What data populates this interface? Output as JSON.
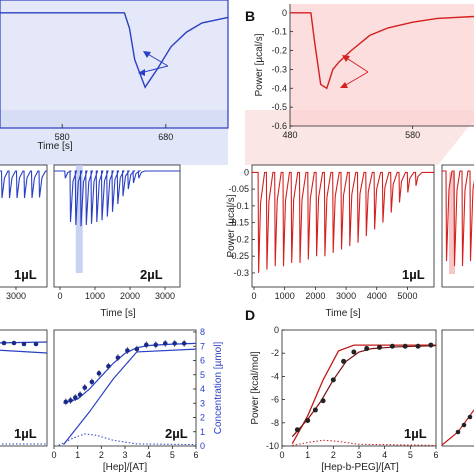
{
  "chart_data": [
    {
      "id": "A-zoom",
      "type": "line",
      "panel_label": "",
      "xlabel": "Time [s]",
      "xticks": [
        580,
        680
      ],
      "xlim": [
        520,
        740
      ],
      "ylim": [
        -0.6,
        0.02
      ],
      "color": "#2a3fc4",
      "series": [
        {
          "x": [
            520,
            640,
            645,
            650,
            660,
            672,
            685,
            700,
            715,
            740
          ],
          "y": [
            0.005,
            0.005,
            -0.08,
            -0.25,
            -0.4,
            -0.3,
            -0.18,
            -0.1,
            -0.05,
            -0.02
          ]
        }
      ]
    },
    {
      "id": "B-zoom",
      "type": "line",
      "panel_label": "B",
      "ylabel": "Power [µcal/s]",
      "xticks": [
        480,
        580
      ],
      "yticks": [
        0,
        -0.1,
        -0.2,
        -0.3,
        -0.4,
        -0.5,
        -0.6
      ],
      "xlim": [
        480,
        630
      ],
      "ylim": [
        -0.6,
        0.02
      ],
      "color": "#d42020",
      "series": [
        {
          "x": [
            480,
            497,
            500,
            505,
            510,
            515,
            520,
            530,
            545,
            560,
            580,
            600,
            630
          ],
          "y": [
            0,
            0,
            -0.15,
            -0.38,
            -0.4,
            -0.3,
            -0.26,
            -0.2,
            -0.12,
            -0.08,
            -0.05,
            -0.03,
            -0.02
          ]
        }
      ]
    },
    {
      "id": "A-1uL",
      "type": "line",
      "annotation": "1µL",
      "xticks": [
        3000
      ],
      "color": "#2a3fc4",
      "peaks": [
        -0.9,
        -0.9,
        -0.9,
        -0.9,
        -0.9,
        -0.88,
        -0.85,
        -0.8,
        -0.7,
        -0.6,
        -0.45,
        -0.3,
        -0.2,
        -0.1
      ]
    },
    {
      "id": "A-2uL",
      "type": "line",
      "annotation": "2µL",
      "xlabel": "Time [s]",
      "xticks": [
        0,
        1000,
        2000,
        3000
      ],
      "xlim": [
        0,
        3200
      ],
      "color": "#2a3fc4",
      "peaks_t": [
        150,
        300,
        450,
        600,
        750,
        900,
        1050,
        1200,
        1350,
        1500,
        1650,
        1800,
        1950,
        2100,
        2250
      ],
      "peaks": [
        -0.12,
        -0.85,
        -0.9,
        -0.92,
        -0.9,
        -0.88,
        -0.85,
        -0.82,
        -0.76,
        -0.68,
        -0.55,
        -0.42,
        -0.3,
        -0.2,
        -0.12
      ]
    },
    {
      "id": "B-1uL",
      "type": "line",
      "annotation": "1µL",
      "ylabel": "Power [µcal/s]",
      "xlabel": "Time [s]",
      "xticks": [
        0,
        1000,
        2000,
        3000,
        4000,
        5000
      ],
      "xlim": [
        0,
        5800
      ],
      "yticks": [
        0,
        -0.05,
        -0.1,
        -0.15,
        -0.2,
        -0.25,
        -0.3
      ],
      "ylim": [
        -0.33,
        0.01
      ],
      "color": "#d42020",
      "peaks": [
        -0.3,
        -0.29,
        -0.28,
        -0.28,
        -0.27,
        -0.27,
        -0.26,
        -0.25,
        -0.25,
        -0.24,
        -0.23,
        -0.22,
        -0.21,
        -0.19,
        -0.17,
        -0.15,
        -0.12,
        -0.09,
        -0.06,
        -0.04
      ]
    },
    {
      "id": "A-binding",
      "type": "scatter",
      "annotation": "2µL",
      "xlabel": "[Hep]/[AT]",
      "xticks": [
        0,
        1,
        2,
        3,
        4,
        5,
        6
      ],
      "xlim": [
        0,
        6
      ],
      "ylabel_right": "Concentration [µmol]",
      "yticks_right": [
        0,
        1,
        2,
        3,
        4,
        5,
        6,
        7,
        8
      ],
      "ylim": [
        0,
        8
      ],
      "color": "#2a3fc4",
      "points": [
        [
          0.5,
          3.1
        ],
        [
          0.7,
          3.2
        ],
        [
          0.9,
          3.4
        ],
        [
          1.1,
          3.6
        ],
        [
          1.3,
          4.1
        ],
        [
          1.6,
          4.5
        ],
        [
          1.9,
          5.1
        ],
        [
          2.3,
          5.6
        ],
        [
          2.7,
          6.2
        ],
        [
          3.1,
          6.7
        ],
        [
          3.5,
          6.8
        ],
        [
          3.9,
          7.1
        ],
        [
          4.3,
          7.1
        ],
        [
          4.7,
          7.2
        ],
        [
          5.1,
          7.2
        ],
        [
          5.5,
          7.2
        ]
      ],
      "fit": [
        [
          0.4,
          3.0
        ],
        [
          1,
          3.3
        ],
        [
          1.5,
          4.0
        ],
        [
          2,
          4.9
        ],
        [
          2.5,
          5.8
        ],
        [
          3,
          6.5
        ],
        [
          3.5,
          6.9
        ],
        [
          4,
          7.05
        ],
        [
          5,
          7.15
        ],
        [
          6,
          7.2
        ]
      ],
      "linear": [
        [
          0.4,
          0.1
        ],
        [
          1.5,
          2.4
        ],
        [
          2.5,
          4.7
        ],
        [
          3.5,
          6.6
        ],
        [
          6,
          6.8
        ]
      ],
      "dotted": [
        [
          0.2,
          0.05
        ],
        [
          0.8,
          0.55
        ],
        [
          1.3,
          0.85
        ],
        [
          1.8,
          0.75
        ],
        [
          2.5,
          0.4
        ],
        [
          3.5,
          0.15
        ],
        [
          6,
          0.1
        ]
      ]
    },
    {
      "id": "D-binding",
      "type": "scatter",
      "panel_label": "D",
      "annotation": "1µL",
      "xlabel": "[Hep-b-PEG]/[AT]",
      "ylabel": "Power [kcal/mol]",
      "xticks": [
        0,
        1,
        2,
        3,
        4,
        5,
        6
      ],
      "xlim": [
        0,
        6
      ],
      "yticks": [
        0,
        -2,
        -4,
        -6,
        -8,
        -10
      ],
      "ylim": [
        -10,
        0
      ],
      "color": "#c41a1a",
      "points": [
        [
          0.6,
          -8.6
        ],
        [
          1.0,
          -7.8
        ],
        [
          1.3,
          -6.9
        ],
        [
          1.6,
          -6.1
        ],
        [
          2.0,
          -4.3
        ],
        [
          2.4,
          -2.7
        ],
        [
          2.8,
          -1.9
        ],
        [
          3.3,
          -1.6
        ],
        [
          3.8,
          -1.5
        ],
        [
          4.3,
          -1.4
        ],
        [
          4.8,
          -1.4
        ],
        [
          5.3,
          -1.4
        ],
        [
          5.8,
          -1.3
        ]
      ],
      "fit": [
        [
          0.4,
          -9.2
        ],
        [
          1,
          -7.7
        ],
        [
          1.5,
          -6.2
        ],
        [
          2,
          -4.3
        ],
        [
          2.5,
          -2.7
        ],
        [
          3,
          -1.9
        ],
        [
          3.5,
          -1.6
        ],
        [
          4.5,
          -1.45
        ],
        [
          6,
          -1.35
        ]
      ],
      "fit2": [
        [
          0.4,
          -9.8
        ],
        [
          1,
          -7.4
        ],
        [
          1.6,
          -4.3
        ],
        [
          2.2,
          -1.8
        ],
        [
          2.8,
          -1.3
        ],
        [
          4,
          -1.3
        ],
        [
          6,
          -1.3
        ]
      ],
      "dotted": [
        [
          0.4,
          -9.95
        ],
        [
          1,
          -9.7
        ],
        [
          1.6,
          -9.5
        ],
        [
          2.2,
          -9.6
        ],
        [
          3,
          -9.85
        ],
        [
          6,
          -9.95
        ]
      ]
    }
  ]
}
